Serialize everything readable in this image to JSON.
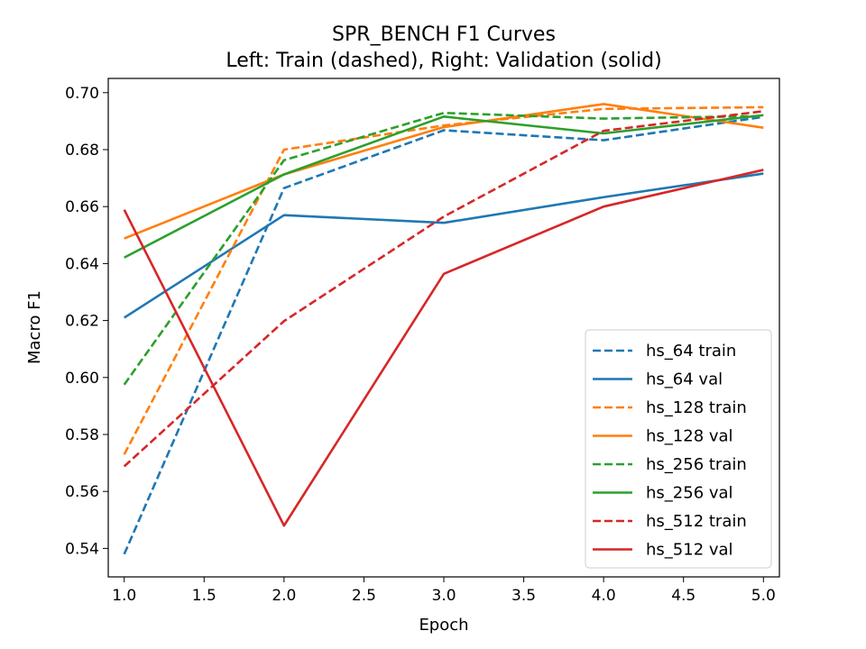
{
  "chart_data": {
    "type": "line",
    "title_lines": [
      "SPR_BENCH F1 Curves",
      "Left: Train (dashed), Right: Validation (solid)"
    ],
    "xlabel": "Epoch",
    "ylabel": "Macro F1",
    "xlim": [
      0.9,
      5.1
    ],
    "ylim": [
      0.53,
      0.705
    ],
    "x_ticks": [
      1.0,
      1.5,
      2.0,
      2.5,
      3.0,
      3.5,
      4.0,
      4.5,
      5.0
    ],
    "x_tick_labels": [
      "1.0",
      "1.5",
      "2.0",
      "2.5",
      "3.0",
      "3.5",
      "4.0",
      "4.5",
      "5.0"
    ],
    "y_ticks": [
      0.54,
      0.56,
      0.58,
      0.6,
      0.62,
      0.64,
      0.66,
      0.68,
      0.7
    ],
    "y_tick_labels": [
      "0.54",
      "0.56",
      "0.58",
      "0.60",
      "0.62",
      "0.64",
      "0.66",
      "0.68",
      "0.70"
    ],
    "grid": false,
    "legend_position": "lower-right",
    "x": [
      1,
      2,
      3,
      4,
      5
    ],
    "series": [
      {
        "name": "hs_64 train",
        "color": "#1f77b4",
        "dash": true,
        "values": [
          0.538,
          0.6665,
          0.6868,
          0.6833,
          0.6915
        ]
      },
      {
        "name": "hs_64 val",
        "color": "#1f77b4",
        "dash": false,
        "values": [
          0.621,
          0.657,
          0.6543,
          0.6633,
          0.6716
        ]
      },
      {
        "name": "hs_128 train",
        "color": "#ff7f0e",
        "dash": true,
        "values": [
          0.573,
          0.68,
          0.6885,
          0.6943,
          0.6949
        ]
      },
      {
        "name": "hs_128 val",
        "color": "#ff7f0e",
        "dash": false,
        "values": [
          0.6488,
          0.6713,
          0.6879,
          0.696,
          0.6877
        ]
      },
      {
        "name": "hs_256 train",
        "color": "#2ca02c",
        "dash": true,
        "values": [
          0.5975,
          0.6763,
          0.6929,
          0.6909,
          0.6918
        ]
      },
      {
        "name": "hs_256 val",
        "color": "#2ca02c",
        "dash": false,
        "values": [
          0.6421,
          0.6713,
          0.6916,
          0.6857,
          0.6921
        ]
      },
      {
        "name": "hs_512 train",
        "color": "#d62728",
        "dash": true,
        "values": [
          0.5688,
          0.6198,
          0.6565,
          0.6866,
          0.6935
        ]
      },
      {
        "name": "hs_512 val",
        "color": "#d62728",
        "dash": false,
        "values": [
          0.6589,
          0.548,
          0.6364,
          0.66,
          0.6729
        ]
      }
    ]
  }
}
